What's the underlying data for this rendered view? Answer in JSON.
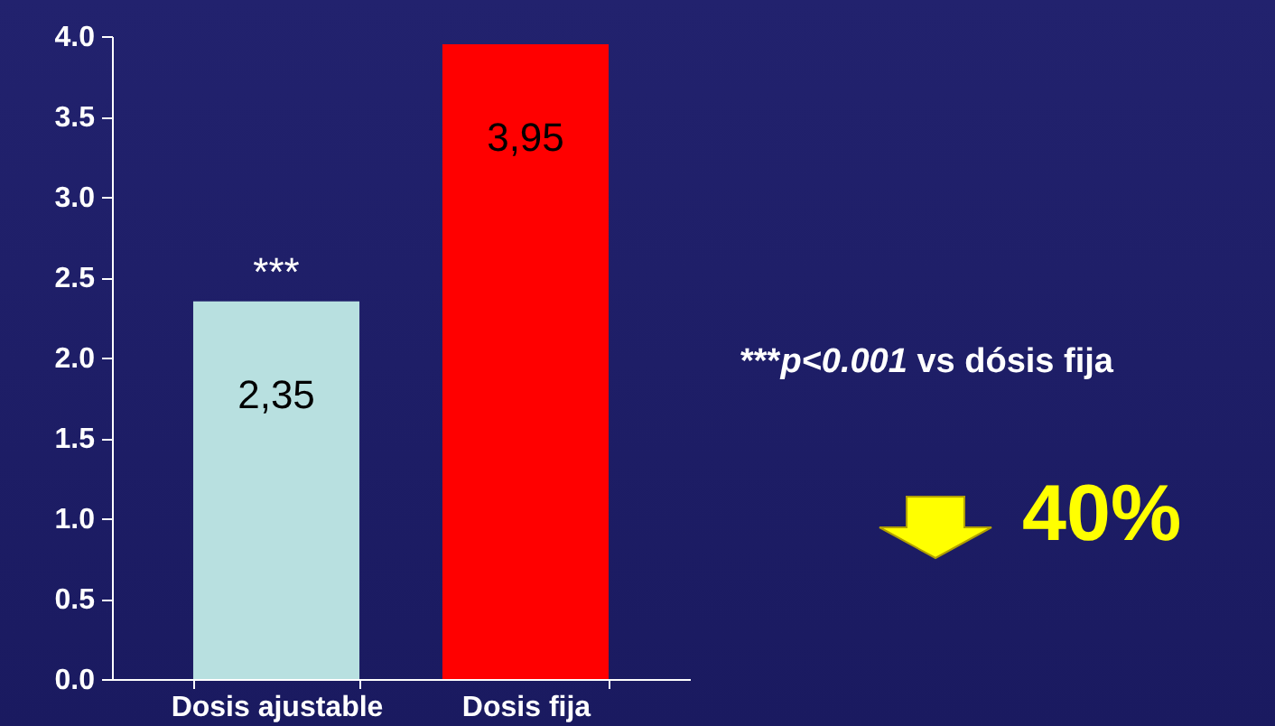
{
  "chart_data": {
    "type": "bar",
    "categories": [
      "Dosis ajustable",
      "Dosis fija"
    ],
    "values": [
      2.35,
      3.95
    ],
    "colors": [
      "#b8e0e0",
      "#ff0000"
    ],
    "value_labels": [
      "2,35",
      "3,95"
    ],
    "ylim": [
      0,
      4
    ],
    "yticks": [
      {
        "value": 0,
        "label": "0.0"
      },
      {
        "value": 0.5,
        "label": "0.5"
      },
      {
        "value": 1,
        "label": "1.0"
      },
      {
        "value": 1.5,
        "label": "1.5"
      },
      {
        "value": 2,
        "label": "2.0"
      },
      {
        "value": 2.5,
        "label": "2.5"
      },
      {
        "value": 3,
        "label": "3.0"
      },
      {
        "value": 3.5,
        "label": "3.5"
      },
      {
        "value": 4,
        "label": "4.0"
      }
    ],
    "grid": false,
    "annotations": [
      {
        "text": "***",
        "x": "Dosis ajustable",
        "y": 2.35
      },
      "***p<0.001 vs dósis fija",
      "40%"
    ]
  }
}
